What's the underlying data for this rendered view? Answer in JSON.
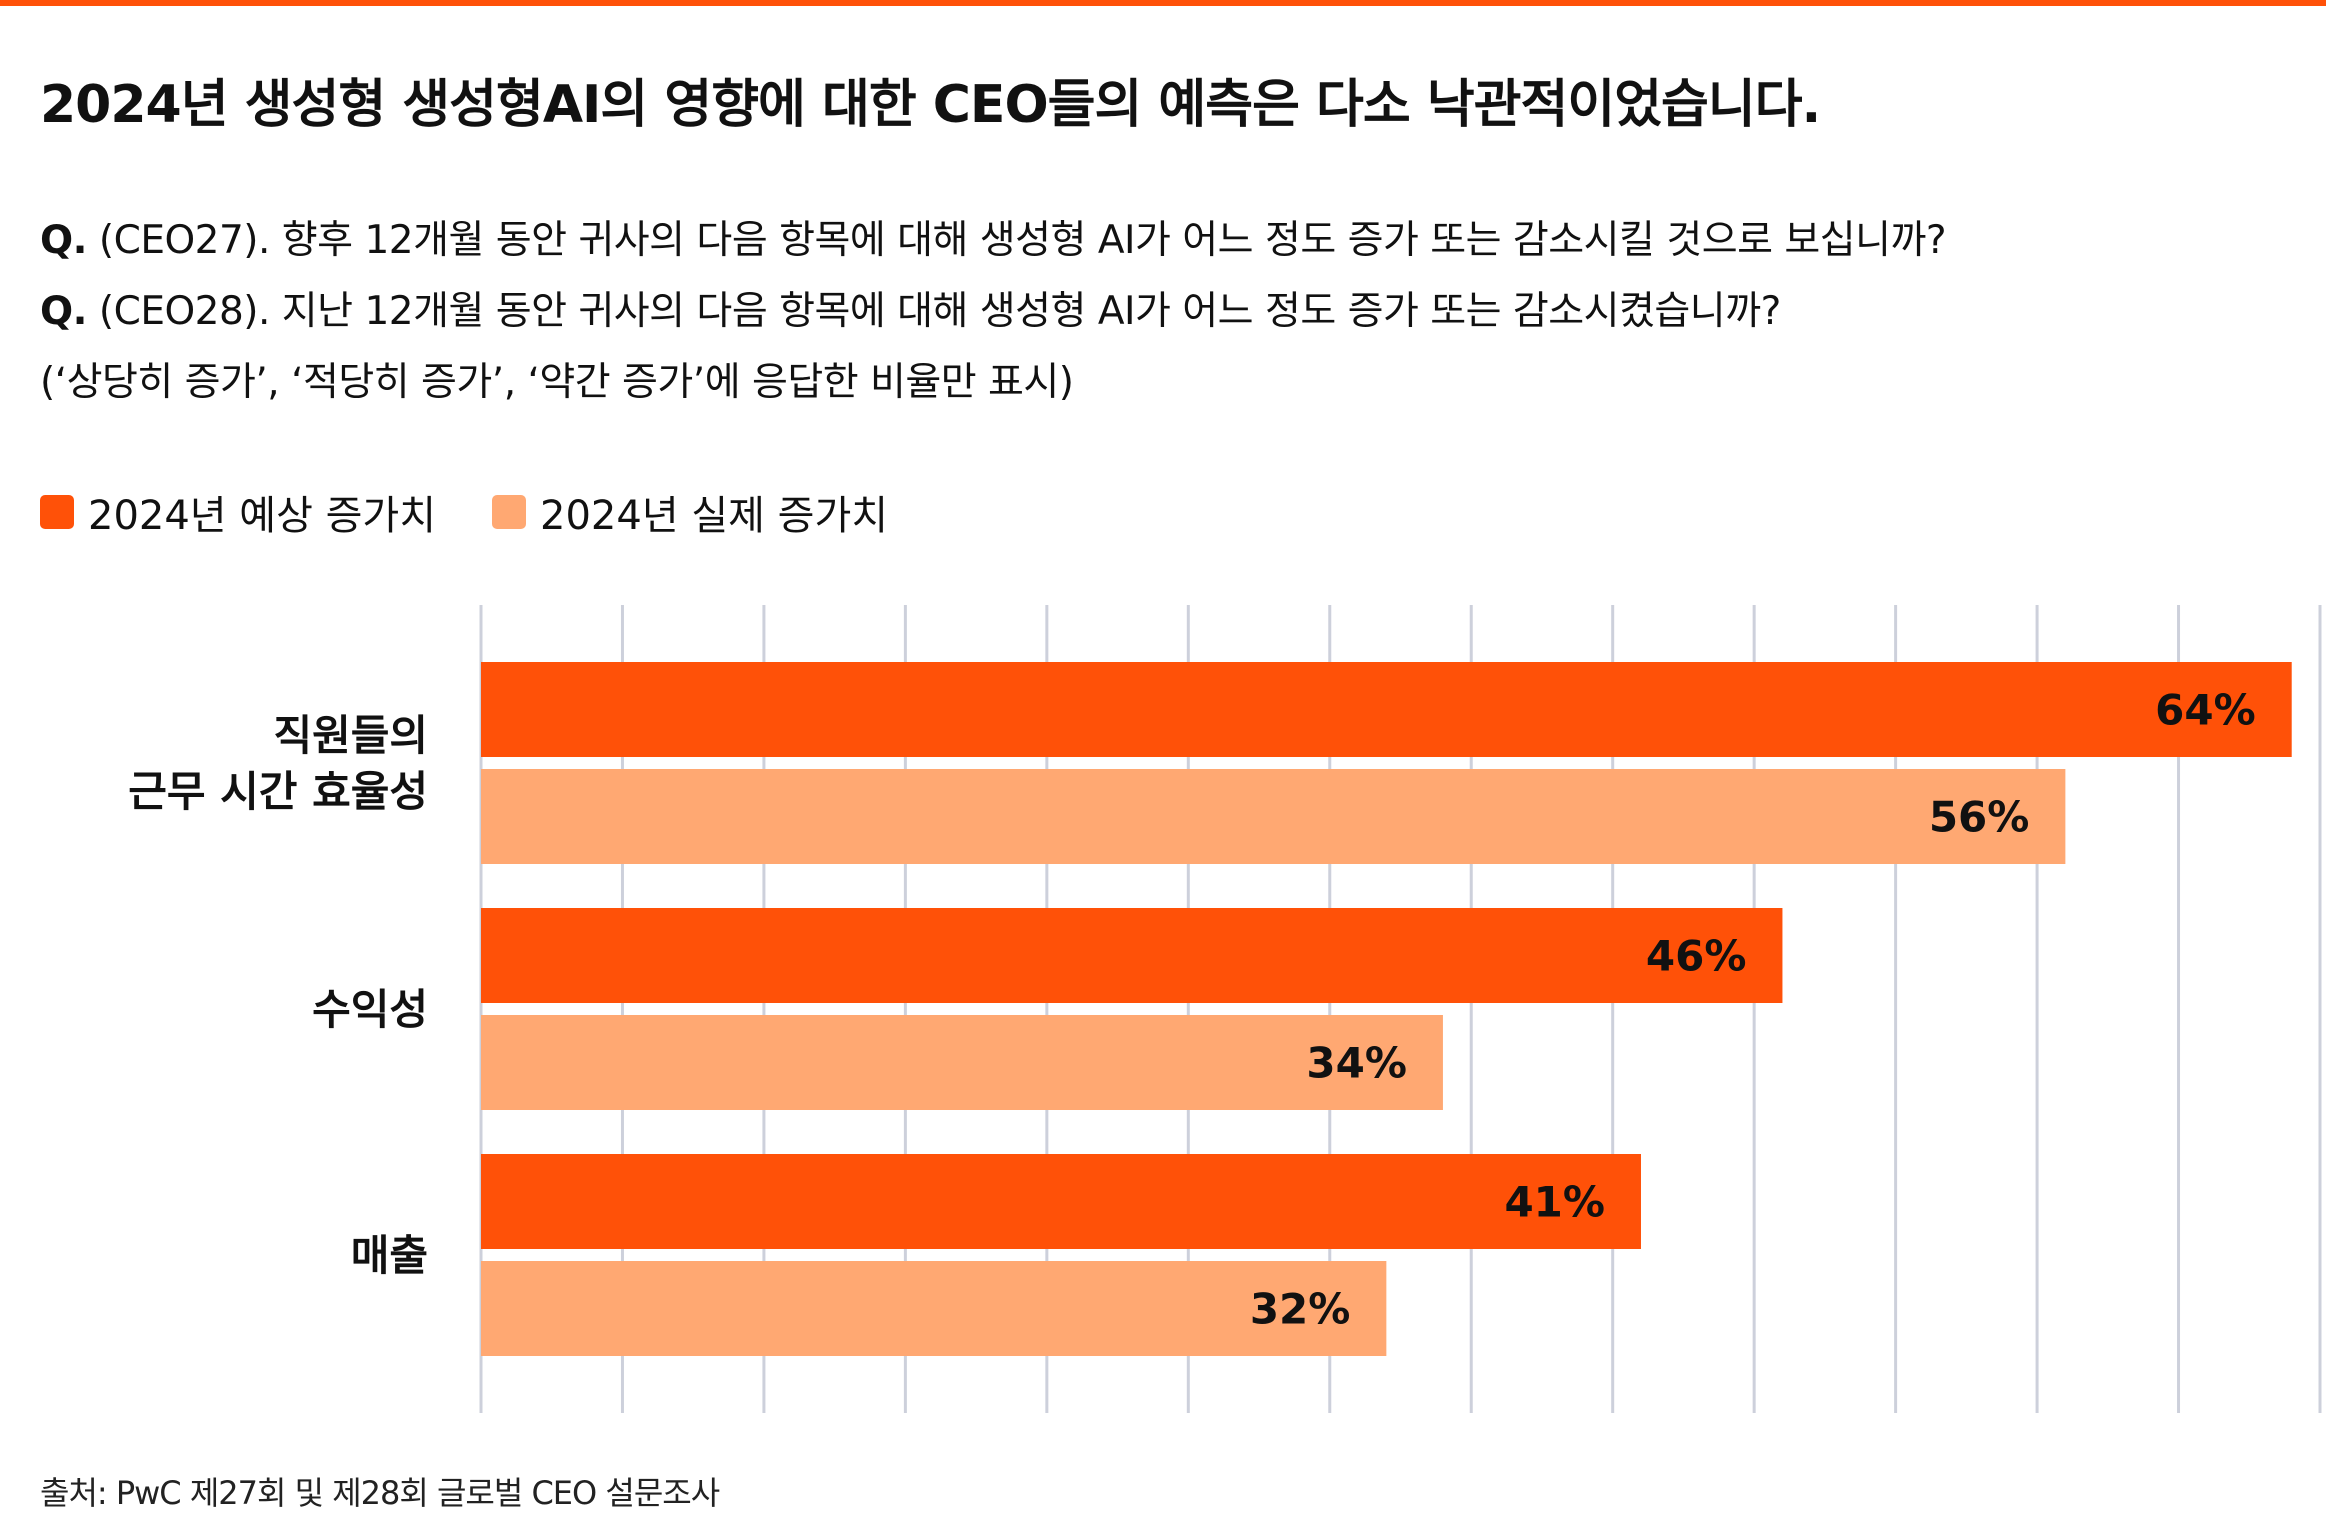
{
  "title": "2024년 생성형 생성형AI의 영향에 대한 CEO들의 예측은 다소 낙관적이었습니다.",
  "questions": [
    {
      "prefix": "Q.",
      "text": " (CEO27). 향후 12개월 동안 귀사의 다음 항목에 대해 생성형 AI가 어느 정도 증가 또는 감소시킬 것으로 보십니까?"
    },
    {
      "prefix": "Q.",
      "text": " (CEO28). 지난 12개월 동안 귀사의 다음 항목에 대해 생성형 AI가 어느 정도 증가 또는 감소시켰습니까?"
    }
  ],
  "note": "(‘상당히 증가’, ‘적당히 증가’, ‘약간 증가’에 응답한 비율만 표시)",
  "source": "출처: PwC 제27회 및 제28회 글로벌 CEO 설문조사",
  "colors": {
    "accent": "#FF5108",
    "expected": "#FF5108",
    "actual": "#FFA872",
    "grid": "#CDD0DB"
  },
  "chart_data": {
    "type": "bar",
    "orientation": "horizontal",
    "categories": [
      [
        "직원들의",
        "근무 시간 효율성"
      ],
      [
        "수익성"
      ],
      [
        "매출"
      ]
    ],
    "series": [
      {
        "name": "2024년 예상 증가치",
        "values": [
          64,
          46,
          41
        ],
        "labels": [
          "64%",
          "46%",
          "41%"
        ]
      },
      {
        "name": "2024년 실제 증가치",
        "values": [
          56,
          34,
          32
        ],
        "labels": [
          "56%",
          "34%",
          "32%"
        ]
      }
    ],
    "xlim": [
      0,
      65
    ],
    "gridline_step": 5,
    "grid": true,
    "legend_position": "top-left"
  }
}
